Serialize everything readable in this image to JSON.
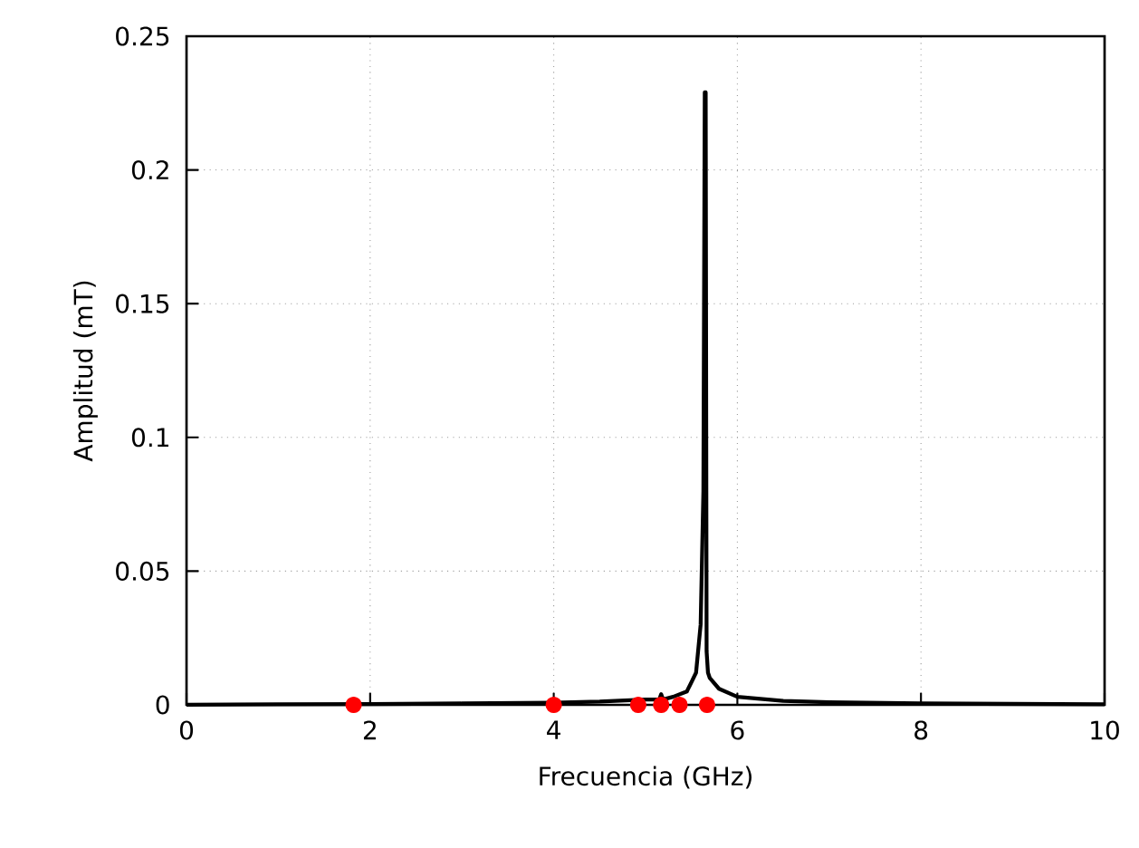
{
  "chart_data": {
    "type": "line",
    "xlabel": "Frecuencia (GHz)",
    "ylabel": "Amplitud (mT)",
    "xlim": [
      0,
      10
    ],
    "ylim": [
      0,
      0.25
    ],
    "xticks": [
      0,
      2,
      4,
      6,
      8,
      10
    ],
    "yticks": [
      0,
      0.05,
      0.1,
      0.15,
      0.2,
      0.25
    ],
    "grid": true,
    "series": [
      {
        "color": "#000000",
        "marker": "none",
        "x": [
          0,
          1,
          2,
          3,
          4,
          4.5,
          5.0,
          5.15,
          5.17,
          5.19,
          5.3,
          5.45,
          5.55,
          5.6,
          5.63,
          5.645,
          5.655,
          5.665,
          5.68,
          5.7,
          5.8,
          6,
          6.5,
          7,
          8,
          10
        ],
        "values": [
          0,
          0.0002,
          0.0003,
          0.0005,
          0.0008,
          0.0012,
          0.002,
          0.002,
          0.004,
          0.002,
          0.003,
          0.005,
          0.012,
          0.03,
          0.08,
          0.229,
          0.229,
          0.02,
          0.012,
          0.01,
          0.006,
          0.003,
          0.0015,
          0.001,
          0.0005,
          0.0002
        ]
      },
      {
        "type": "scatter",
        "color": "#ff0000",
        "marker": "circle",
        "x": [
          1.82,
          4.0,
          4.92,
          5.17,
          5.37,
          5.67
        ],
        "values": [
          0,
          0,
          0,
          0,
          0,
          0
        ]
      }
    ]
  }
}
